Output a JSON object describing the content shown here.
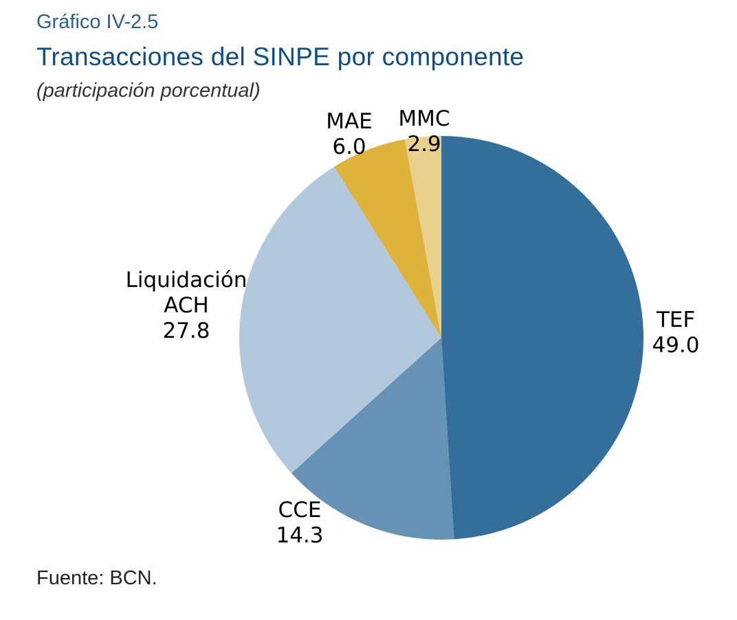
{
  "header": {
    "chart_number": "Gráfico IV-2.5",
    "title": "Transacciones del SINPE por componente",
    "subtitle": "(participación porcentual)"
  },
  "footer": {
    "source": "Fuente: BCN."
  },
  "chart_data": {
    "type": "pie",
    "title": "Transacciones del SINPE por componente",
    "subtitle": "(participación porcentual)",
    "start": "12 o'clock",
    "direction": "clockwise",
    "slices": [
      {
        "label": "TEF",
        "value": 49.0,
        "value_text": "49.0",
        "color": "#346f9b"
      },
      {
        "label": "CCE",
        "value": 14.3,
        "value_text": "14.3",
        "color": "#6692b5"
      },
      {
        "label": "Liquidación ACH",
        "value": 27.8,
        "value_text": "27.8",
        "color": "#b3c8dc"
      },
      {
        "label": "MAE",
        "value": 6.0,
        "value_text": "6.0",
        "color": "#deb33c"
      },
      {
        "label": "MMC",
        "value": 2.9,
        "value_text": "2.9",
        "color": "#e9d18d"
      }
    ]
  }
}
